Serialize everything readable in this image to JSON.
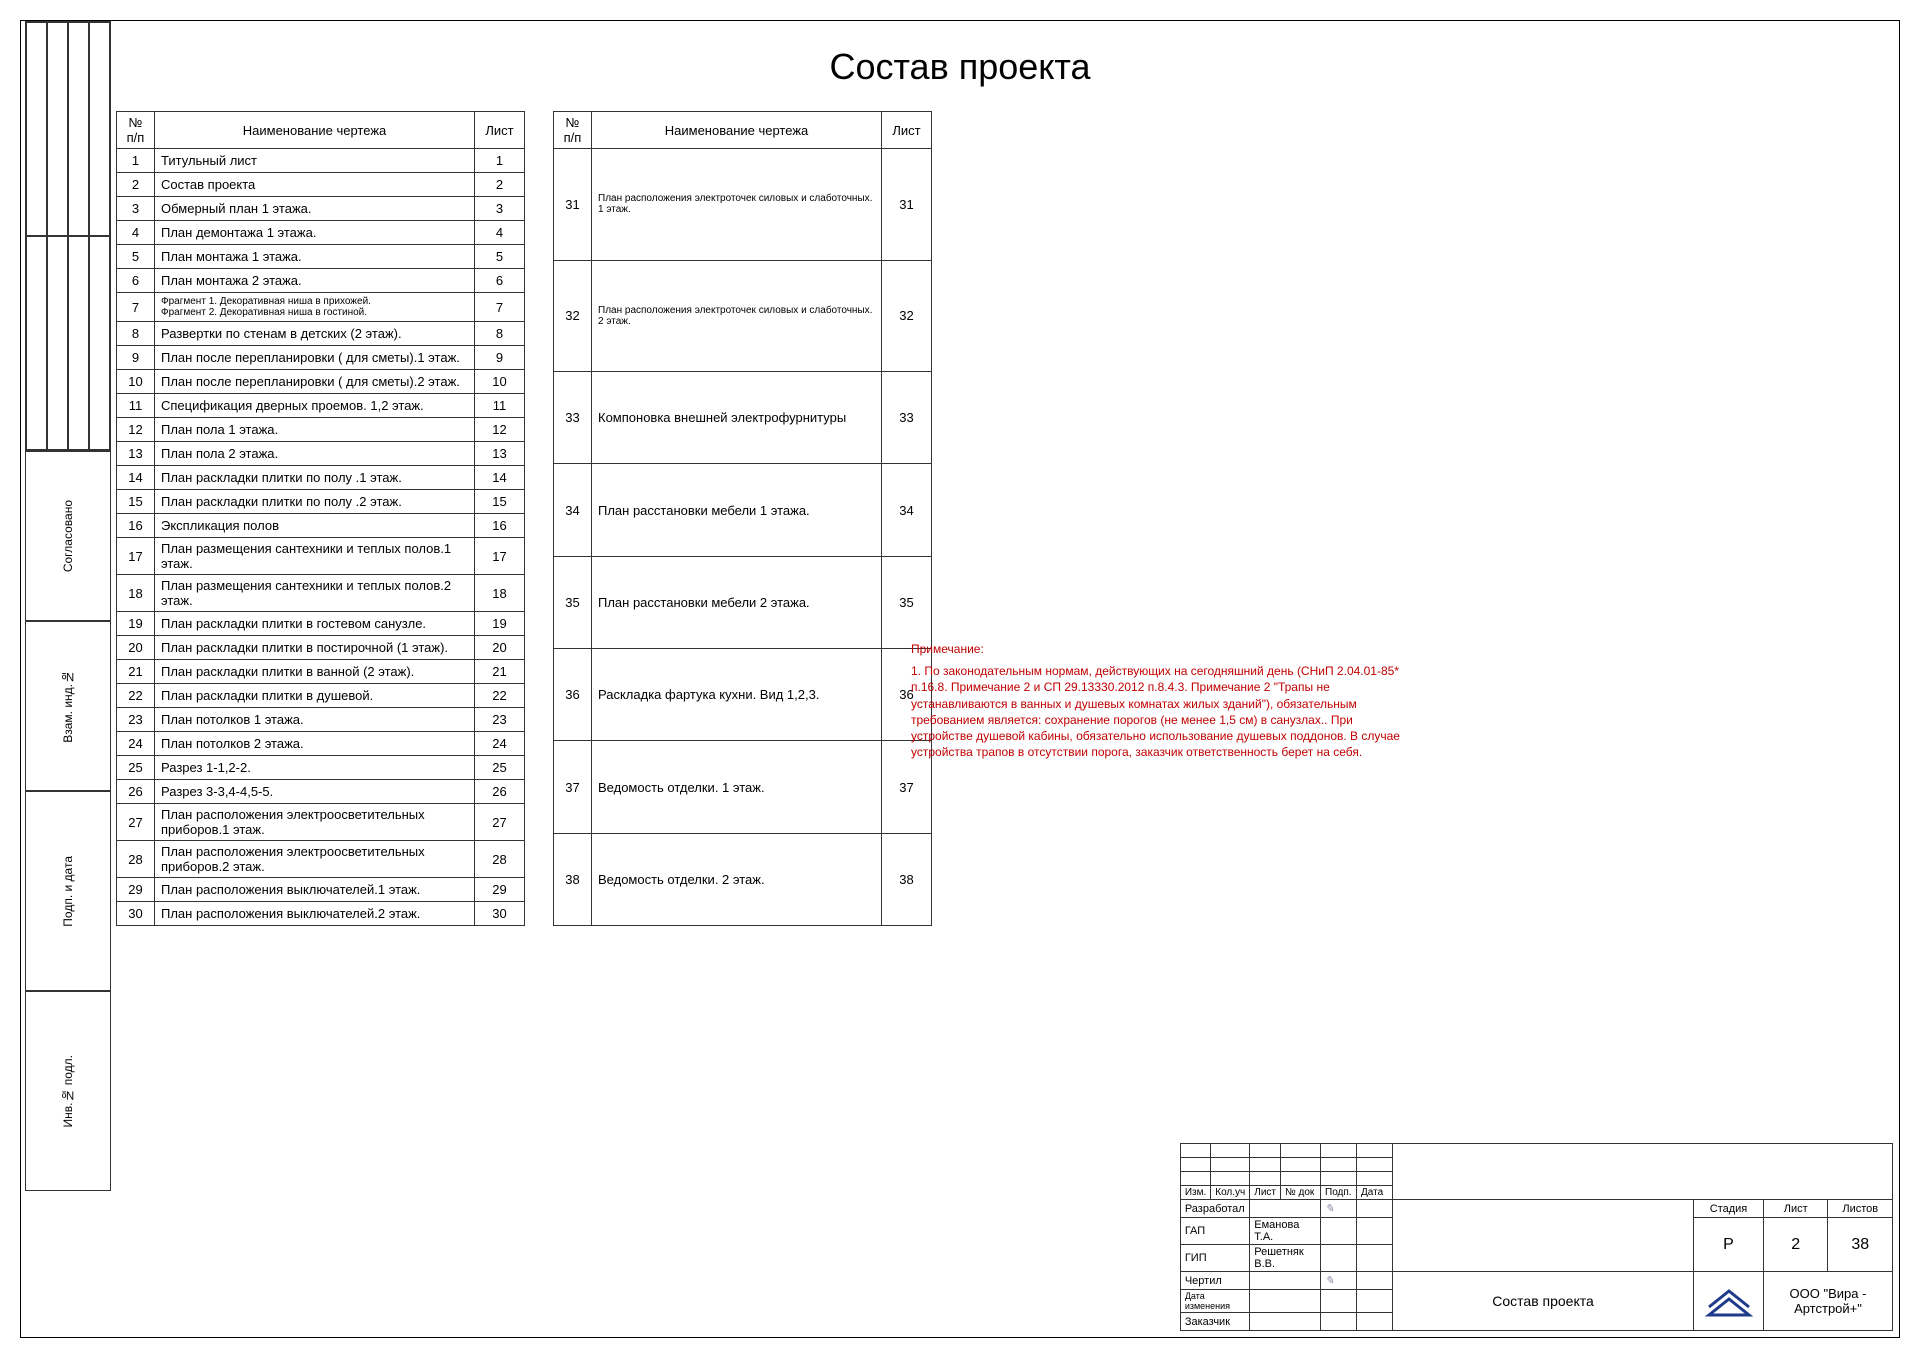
{
  "title": "Состав проекта",
  "columns": {
    "num": "№\nп/п",
    "name": "Наименование чертежа",
    "sheet": "Лист"
  },
  "table1": [
    {
      "n": "1",
      "name": "Титульный лист",
      "s": "1"
    },
    {
      "n": "2",
      "name": "Состав проекта",
      "s": "2"
    },
    {
      "n": "3",
      "name": "Обмерный план 1 этажа.",
      "s": "3"
    },
    {
      "n": "4",
      "name": "План демонтажа 1 этажа.",
      "s": "4"
    },
    {
      "n": "5",
      "name": "План монтажа 1 этажа.",
      "s": "5"
    },
    {
      "n": "6",
      "name": "План монтажа 2 этажа.",
      "s": "6"
    },
    {
      "n": "7",
      "name": "Фрагмент 1. Декоративная ниша в прихожей.\nФрагмент 2. Декоративная ниша в гостиной.",
      "s": "7",
      "small": true
    },
    {
      "n": "8",
      "name": "Развертки по стенам в детских (2 этаж).",
      "s": "8"
    },
    {
      "n": "9",
      "name": "План после перепланировки ( для сметы).1 этаж.",
      "s": "9"
    },
    {
      "n": "10",
      "name": "План после перепланировки ( для сметы).2 этаж.",
      "s": "10"
    },
    {
      "n": "11",
      "name": "Спецификация дверных проемов. 1,2  этаж.",
      "s": "11"
    },
    {
      "n": "12",
      "name": "План пола 1 этажа.",
      "s": "12"
    },
    {
      "n": "13",
      "name": "План пола 2 этажа.",
      "s": "13"
    },
    {
      "n": "14",
      "name": "План раскладки плитки по полу .1 этаж.",
      "s": "14"
    },
    {
      "n": "15",
      "name": "План раскладки плитки по полу .2 этаж.",
      "s": "15"
    },
    {
      "n": "16",
      "name": "Экспликация полов",
      "s": "16"
    },
    {
      "n": "17",
      "name": "План размещения сантехники и теплых полов.1 этаж.",
      "s": "17"
    },
    {
      "n": "18",
      "name": "План размещения сантехники и теплых полов.2 этаж.",
      "s": "18"
    },
    {
      "n": "19",
      "name": "План раскладки плитки в гостевом санузле.",
      "s": "19"
    },
    {
      "n": "20",
      "name": "План раскладки плитки в  постирочной (1 этаж).",
      "s": "20"
    },
    {
      "n": "21",
      "name": "План раскладки плитки в  ванной (2 этаж).",
      "s": "21"
    },
    {
      "n": "22",
      "name": "План раскладки плитки в  душевой.",
      "s": "22"
    },
    {
      "n": "23",
      "name": "План потолков 1 этажа.",
      "s": "23"
    },
    {
      "n": "24",
      "name": "План потолков 2 этажа.",
      "s": "24"
    },
    {
      "n": "25",
      "name": "Разрез 1-1,2-2.",
      "s": "25"
    },
    {
      "n": "26",
      "name": "Разрез 3-3,4-4,5-5.",
      "s": "26"
    },
    {
      "n": "27",
      "name": "План расположения электроосветительных приборов.1 этаж.",
      "s": "27"
    },
    {
      "n": "28",
      "name": "План расположения электроосветительных приборов.2 этаж.",
      "s": "28"
    },
    {
      "n": "29",
      "name": "План расположения выключателей.1 этаж.",
      "s": "29"
    },
    {
      "n": "30",
      "name": "План расположения выключателей.2 этаж.",
      "s": "30"
    }
  ],
  "table2": [
    {
      "n": "31",
      "name": "План расположения электроточек силовых и слаботочных.\n1 этаж.",
      "s": "31",
      "small": true
    },
    {
      "n": "32",
      "name": "План расположения электроточек силовых и слаботочных.\n2 этаж.",
      "s": "32",
      "small": true
    },
    {
      "n": "33",
      "name": "Компоновка внешней электрофурнитуры",
      "s": "33"
    },
    {
      "n": "34",
      "name": "План расстановки мебели 1 этажа.",
      "s": "34"
    },
    {
      "n": "35",
      "name": "План расстановки мебели 2 этажа.",
      "s": "35"
    },
    {
      "n": "36",
      "name": "Раскладка фартука кухни. Вид 1,2,3.",
      "s": "36"
    },
    {
      "n": "37",
      "name": "Ведомость отделки. 1 этаж.",
      "s": "37"
    },
    {
      "n": "38",
      "name": "Ведомость отделки. 2 этаж.",
      "s": "38"
    }
  ],
  "side_labels": [
    "Согласовано",
    "Взам. инд.№",
    "Подп. и дата",
    "Инв.№ подл."
  ],
  "note": {
    "title": "Примечание:",
    "body": "1. По законодательным нормам, действующих на сегодняшний день (СНиП 2.04.01-85* п.16.8. Примечание 2 и СП 29.13330.2012 п.8.4.3. Примечание 2 \"Трапы не устанавливаются в ванных и душевых комнатах жилых зданий\"), обязательным требованием является: сохранение порогов (не менее 1,5 см) в санузлах.. При устройстве душевой кабины, обязательно использование душевых поддонов. В случае устройства трапов в отсутствии порога, заказчик ответственность берет на себя."
  },
  "title_block": {
    "rev_headers": [
      "Изм.",
      "Кол.уч",
      "Лист",
      "№ док",
      "Подп.",
      "Дата"
    ],
    "roles": [
      {
        "role": "Разработал",
        "name": "",
        "sign": "✎"
      },
      {
        "role": "ГАП",
        "name": "Еманова Т.А.",
        "sign": ""
      },
      {
        "role": "ГИП",
        "name": "Решетняк В.В.",
        "sign": ""
      },
      {
        "role": "Чертил",
        "name": "",
        "sign": "✎"
      },
      {
        "role": "Дата изменения",
        "name": "",
        "sign": ""
      },
      {
        "role": "Заказчик",
        "name": "",
        "sign": ""
      }
    ],
    "stage_lbl": "Стадия",
    "sheet_lbl": "Лист",
    "sheets_lbl": "Листов",
    "stage": "Р",
    "sheet": "2",
    "sheets": "38",
    "doc_title": "Состав проекта",
    "company": "ООО \"Вира - Артстрой+\""
  },
  "colors": {
    "note_red": "#c00000",
    "logo_blue": "#1e3a8a",
    "border": "#333333"
  }
}
